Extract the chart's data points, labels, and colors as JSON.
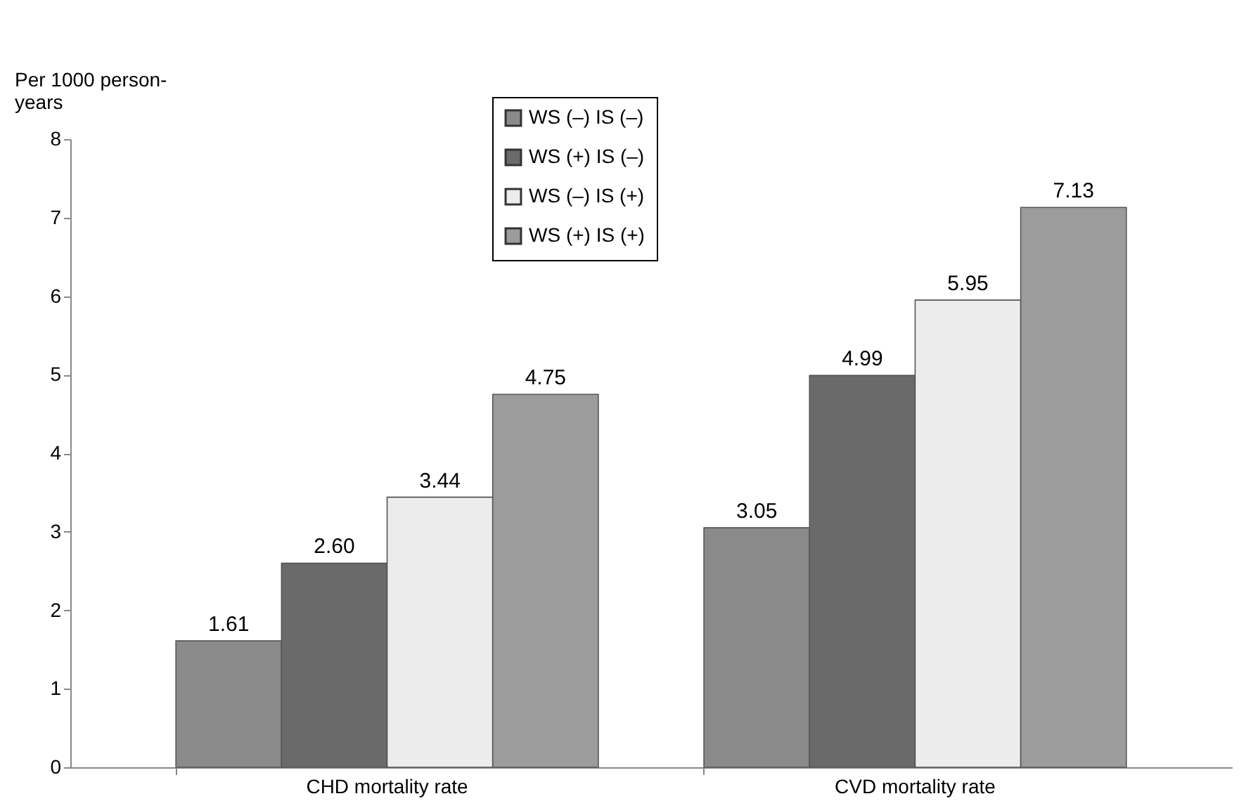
{
  "chart_data": {
    "type": "bar",
    "ylabel": "Per 1000 person-years",
    "categories": [
      "CHD mortality rate",
      "CVD mortality rate"
    ],
    "series": [
      {
        "name": "WS (–) IS (–)",
        "color": "#8a8a8a",
        "values": [
          1.61,
          3.05
        ]
      },
      {
        "name": "WS (+) IS (–)",
        "color": "#6a6a6a",
        "values": [
          2.6,
          4.99
        ]
      },
      {
        "name": "WS (–) IS (+)",
        "color": "#ececec",
        "values": [
          3.44,
          5.95
        ]
      },
      {
        "name": "WS (+) IS (+)",
        "color": "#9c9c9c",
        "values": [
          4.75,
          7.13
        ]
      }
    ],
    "value_labels": [
      [
        "1.61",
        "3.05"
      ],
      [
        "2.60",
        "4.99"
      ],
      [
        "3.44",
        "5.95"
      ],
      [
        "4.75",
        "7.13"
      ]
    ],
    "ylim": [
      0,
      8
    ],
    "yticks": [
      0,
      1,
      2,
      3,
      4,
      5,
      6,
      7,
      8
    ],
    "grid": false,
    "legend": "top"
  }
}
